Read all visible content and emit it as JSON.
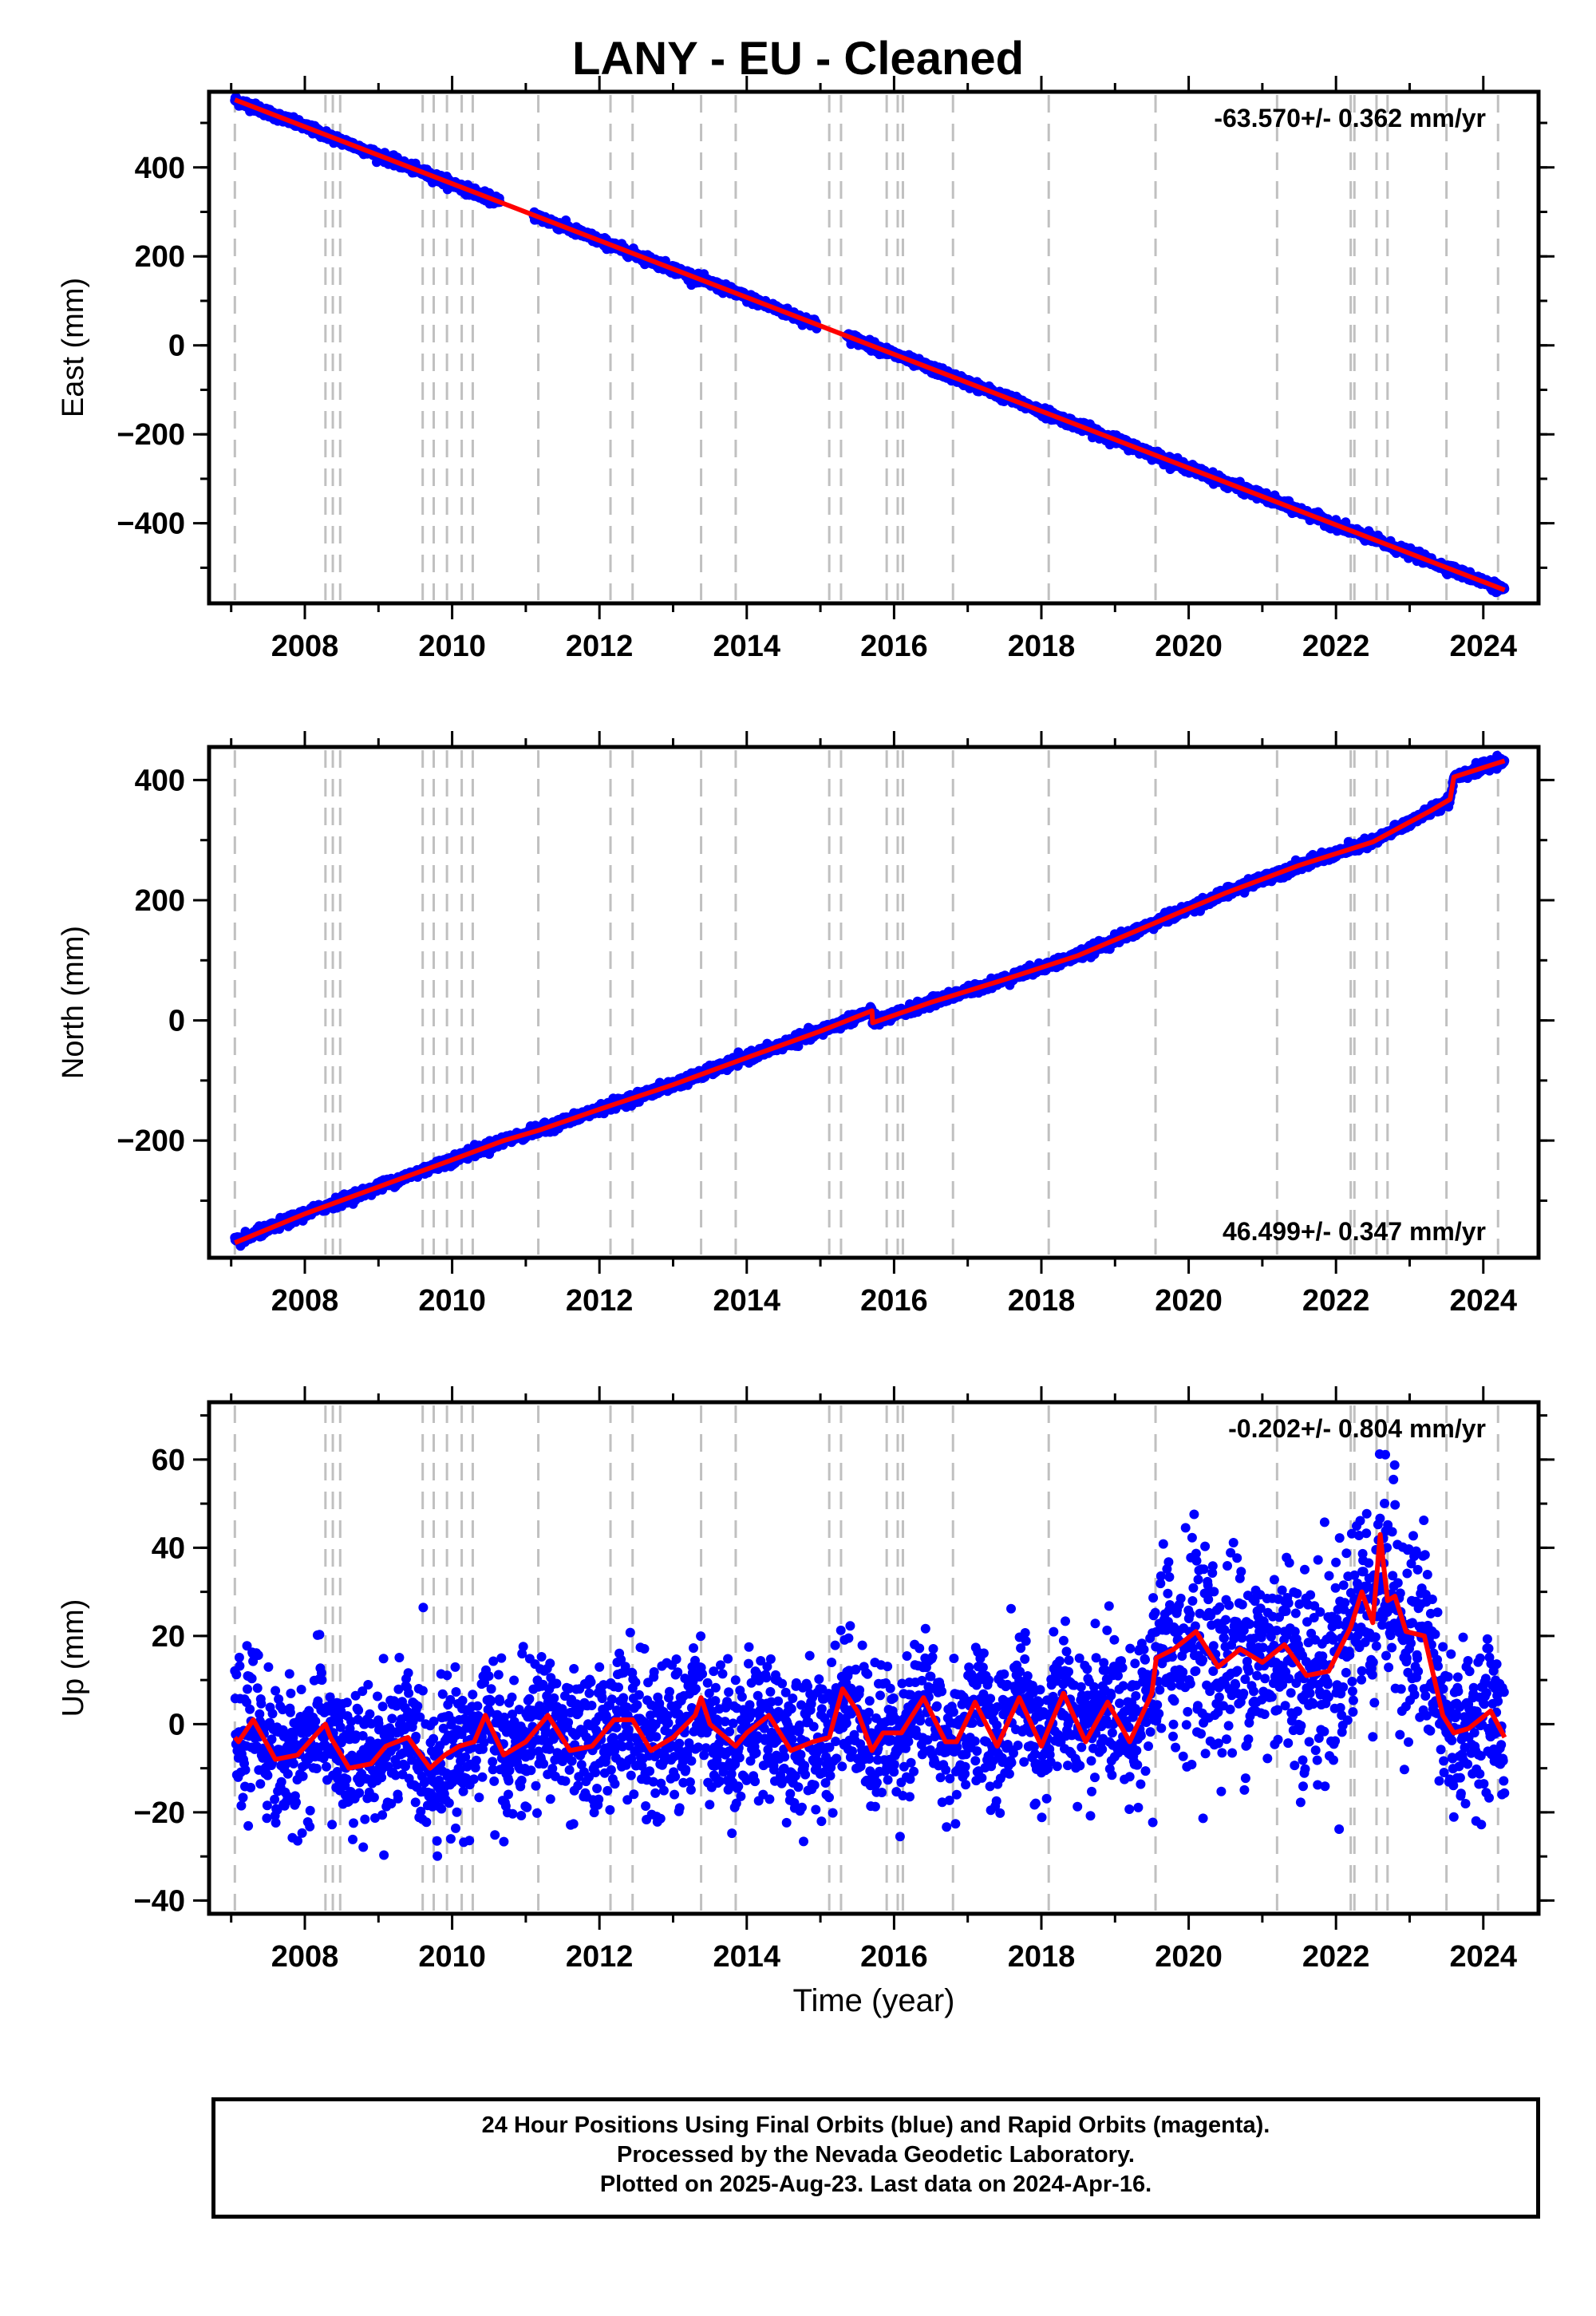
{
  "figure": {
    "title": "LANY  - EU - Cleaned",
    "footer_lines": [
      "24 Hour Positions Using Final Orbits (blue) and Rapid Orbits (magenta).",
      "Processed by the Nevada Geodetic Laboratory.",
      "Plotted on 2025-Aug-23. Last data on 2024-Apr-16."
    ],
    "colors": {
      "points": "#0000ff",
      "model": "#ff0000",
      "events": "#c0c0c0"
    }
  },
  "chart_data": [
    {
      "type": "scatter",
      "ylabel": "East (mm)",
      "xlabel": "",
      "xlim": [
        2006.7,
        2024.75
      ],
      "ylim": [
        -580,
        570
      ],
      "xticks": [
        2008,
        2010,
        2012,
        2014,
        2016,
        2018,
        2020,
        2022,
        2024
      ],
      "yticks": [
        -400,
        -200,
        0,
        200,
        400
      ],
      "rate_text": "-63.570+/- 0.362 mm/yr",
      "rate_position": "top-right",
      "model_line": {
        "x": [
          2007.05,
          2024.29
        ],
        "y": [
          552,
          -550
        ]
      },
      "scatter_sigma": 5,
      "scatter_step": 0.0055,
      "event_lines": [
        2007.05,
        2008.28,
        2008.38,
        2008.48,
        2009.6,
        2009.75,
        2009.93,
        2010.13,
        2010.28,
        2011.17,
        2012.15,
        2012.45,
        2013.38,
        2013.85,
        2015.12,
        2015.28,
        2015.9,
        2016.05,
        2016.12,
        2016.8,
        2018.1,
        2019.55,
        2021.2,
        2022.2,
        2022.25,
        2022.55,
        2022.7,
        2023.5,
        2024.2
      ]
    },
    {
      "type": "scatter",
      "ylabel": "North (mm)",
      "xlabel": "",
      "xlim": [
        2006.7,
        2024.75
      ],
      "ylim": [
        -395,
        455
      ],
      "xticks": [
        2008,
        2010,
        2012,
        2014,
        2016,
        2018,
        2020,
        2022,
        2024
      ],
      "yticks": [
        -200,
        0,
        200,
        400
      ],
      "rate_text": "46.499+/- 0.347 mm/yr",
      "rate_position": "bottom-right",
      "model_line": {
        "x": [
          2007.05,
          2008.0,
          2009.0,
          2010.0,
          2010.7,
          2011.2,
          2012.0,
          2013.0,
          2014.0,
          2015.0,
          2015.7,
          2015.71,
          2016.5,
          2017.5,
          2018.5,
          2019.5,
          2020.5,
          2021.5,
          2022.5,
          2023.3,
          2023.55,
          2023.6,
          2024.29
        ],
        "y": [
          -370,
          -322,
          -277,
          -232,
          -200,
          -182,
          -148,
          -107,
          -62,
          -18,
          16,
          -4,
          30,
          68,
          108,
          160,
          212,
          258,
          297,
          350,
          368,
          405,
          432
        ]
      },
      "scatter_sigma": 4,
      "scatter_step": 0.0055,
      "event_lines": [
        2007.05,
        2008.28,
        2008.38,
        2008.48,
        2009.6,
        2009.75,
        2009.93,
        2010.13,
        2010.28,
        2011.17,
        2012.15,
        2012.45,
        2013.38,
        2013.85,
        2015.12,
        2015.28,
        2015.9,
        2016.05,
        2016.12,
        2016.8,
        2018.1,
        2019.55,
        2021.2,
        2022.2,
        2022.25,
        2022.55,
        2022.7,
        2023.5,
        2024.2
      ]
    },
    {
      "type": "scatter",
      "ylabel": "Up (mm)",
      "xlabel": "Time (year)",
      "xlim": [
        2006.7,
        2024.75
      ],
      "ylim": [
        -43,
        73
      ],
      "xticks": [
        2008,
        2010,
        2012,
        2014,
        2016,
        2018,
        2020,
        2022,
        2024
      ],
      "yticks": [
        -40,
        -20,
        0,
        20,
        40,
        60
      ],
      "rate_text": "-0.202+/- 0.804 mm/yr",
      "rate_position": "top-right",
      "model_line": {
        "x": [
          2007.05,
          2007.1,
          2007.3,
          2007.6,
          2007.9,
          2008.28,
          2008.35,
          2008.6,
          2008.9,
          2009.1,
          2009.4,
          2009.7,
          2009.9,
          2010.1,
          2010.3,
          2010.45,
          2010.7,
          2011.0,
          2011.3,
          2011.6,
          2011.9,
          2012.2,
          2012.45,
          2012.7,
          2013.0,
          2013.3,
          2013.38,
          2013.5,
          2013.85,
          2014.0,
          2014.3,
          2014.6,
          2014.9,
          2015.12,
          2015.3,
          2015.5,
          2015.7,
          2015.85,
          2016.1,
          2016.4,
          2016.7,
          2016.85,
          2017.1,
          2017.4,
          2017.7,
          2018.0,
          2018.3,
          2018.6,
          2018.9,
          2019.2,
          2019.5,
          2019.56,
          2019.8,
          2020.1,
          2020.4,
          2020.7,
          2021.0,
          2021.3,
          2021.6,
          2021.9,
          2022.2,
          2022.35,
          2022.5,
          2022.6,
          2022.7,
          2022.8,
          2022.95,
          2023.2,
          2023.45,
          2023.6,
          2023.8,
          2024.1,
          2024.29
        ],
        "y": [
          -3,
          -4,
          1,
          -8,
          -7,
          0,
          -3,
          -10,
          -9,
          -5,
          -3,
          -10,
          -7,
          -5,
          -4,
          2,
          -7,
          -4,
          2,
          -6,
          -5,
          1,
          1,
          -6,
          -3,
          2,
          6,
          0,
          -5,
          -2,
          2,
          -6,
          -4,
          -3,
          8,
          3,
          -6,
          -2,
          -2,
          6,
          -4,
          -4,
          5,
          -5,
          6,
          -5,
          7,
          -4,
          5,
          -4,
          7,
          15,
          17,
          21,
          13,
          17,
          14,
          18,
          11,
          12,
          22,
          30,
          23,
          43,
          28,
          29,
          21,
          20,
          2,
          -2,
          -1,
          3,
          -3
        ]
      },
      "scatter_sigma": 8,
      "scatter_step": 0.0055,
      "event_lines": [
        2007.05,
        2008.28,
        2008.38,
        2008.48,
        2009.6,
        2009.75,
        2009.93,
        2010.13,
        2010.28,
        2011.17,
        2012.15,
        2012.45,
        2013.38,
        2013.85,
        2015.12,
        2015.28,
        2015.9,
        2016.05,
        2016.12,
        2016.8,
        2018.1,
        2019.55,
        2021.2,
        2022.2,
        2022.25,
        2022.55,
        2022.7,
        2023.5,
        2024.2
      ]
    }
  ]
}
